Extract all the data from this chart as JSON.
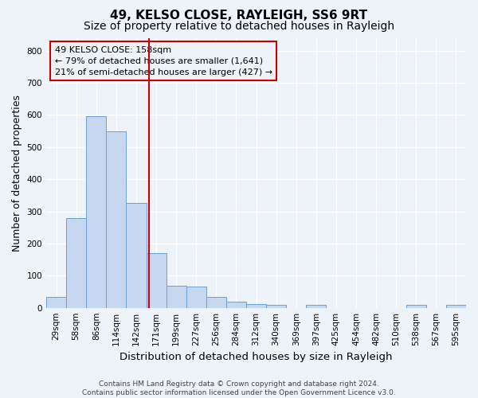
{
  "title_line1": "49, KELSO CLOSE, RAYLEIGH, SS6 9RT",
  "title_line2": "Size of property relative to detached houses in Rayleigh",
  "xlabel": "Distribution of detached houses by size in Rayleigh",
  "ylabel": "Number of detached properties",
  "footnote": "Contains HM Land Registry data © Crown copyright and database right 2024.\nContains public sector information licensed under the Open Government Licence v3.0.",
  "bin_labels": [
    "29sqm",
    "58sqm",
    "86sqm",
    "114sqm",
    "142sqm",
    "171sqm",
    "199sqm",
    "227sqm",
    "256sqm",
    "284sqm",
    "312sqm",
    "340sqm",
    "369sqm",
    "397sqm",
    "425sqm",
    "454sqm",
    "482sqm",
    "510sqm",
    "538sqm",
    "567sqm",
    "595sqm"
  ],
  "bar_values": [
    35,
    280,
    595,
    550,
    325,
    170,
    68,
    65,
    35,
    20,
    12,
    8,
    0,
    8,
    0,
    0,
    0,
    0,
    8,
    0,
    8
  ],
  "bar_color": "#c5d8f0",
  "bar_edge_color": "#6a9fd8",
  "vline_x": 4.62,
  "vline_color": "#cc0000",
  "annotation_text": "49 KELSO CLOSE: 158sqm\n← 79% of detached houses are smaller (1,641)\n21% of semi-detached houses are larger (427) →",
  "box_edge_color": "#cc0000",
  "ylim": [
    0,
    840
  ],
  "yticks": [
    0,
    100,
    200,
    300,
    400,
    500,
    600,
    700,
    800
  ],
  "background_color": "#eef2f9",
  "grid_color": "#ffffff",
  "title1_fontsize": 11,
  "title2_fontsize": 10,
  "axis_label_fontsize": 9,
  "tick_fontsize": 7.5,
  "annotation_fontsize": 8,
  "footnote_fontsize": 6.5
}
